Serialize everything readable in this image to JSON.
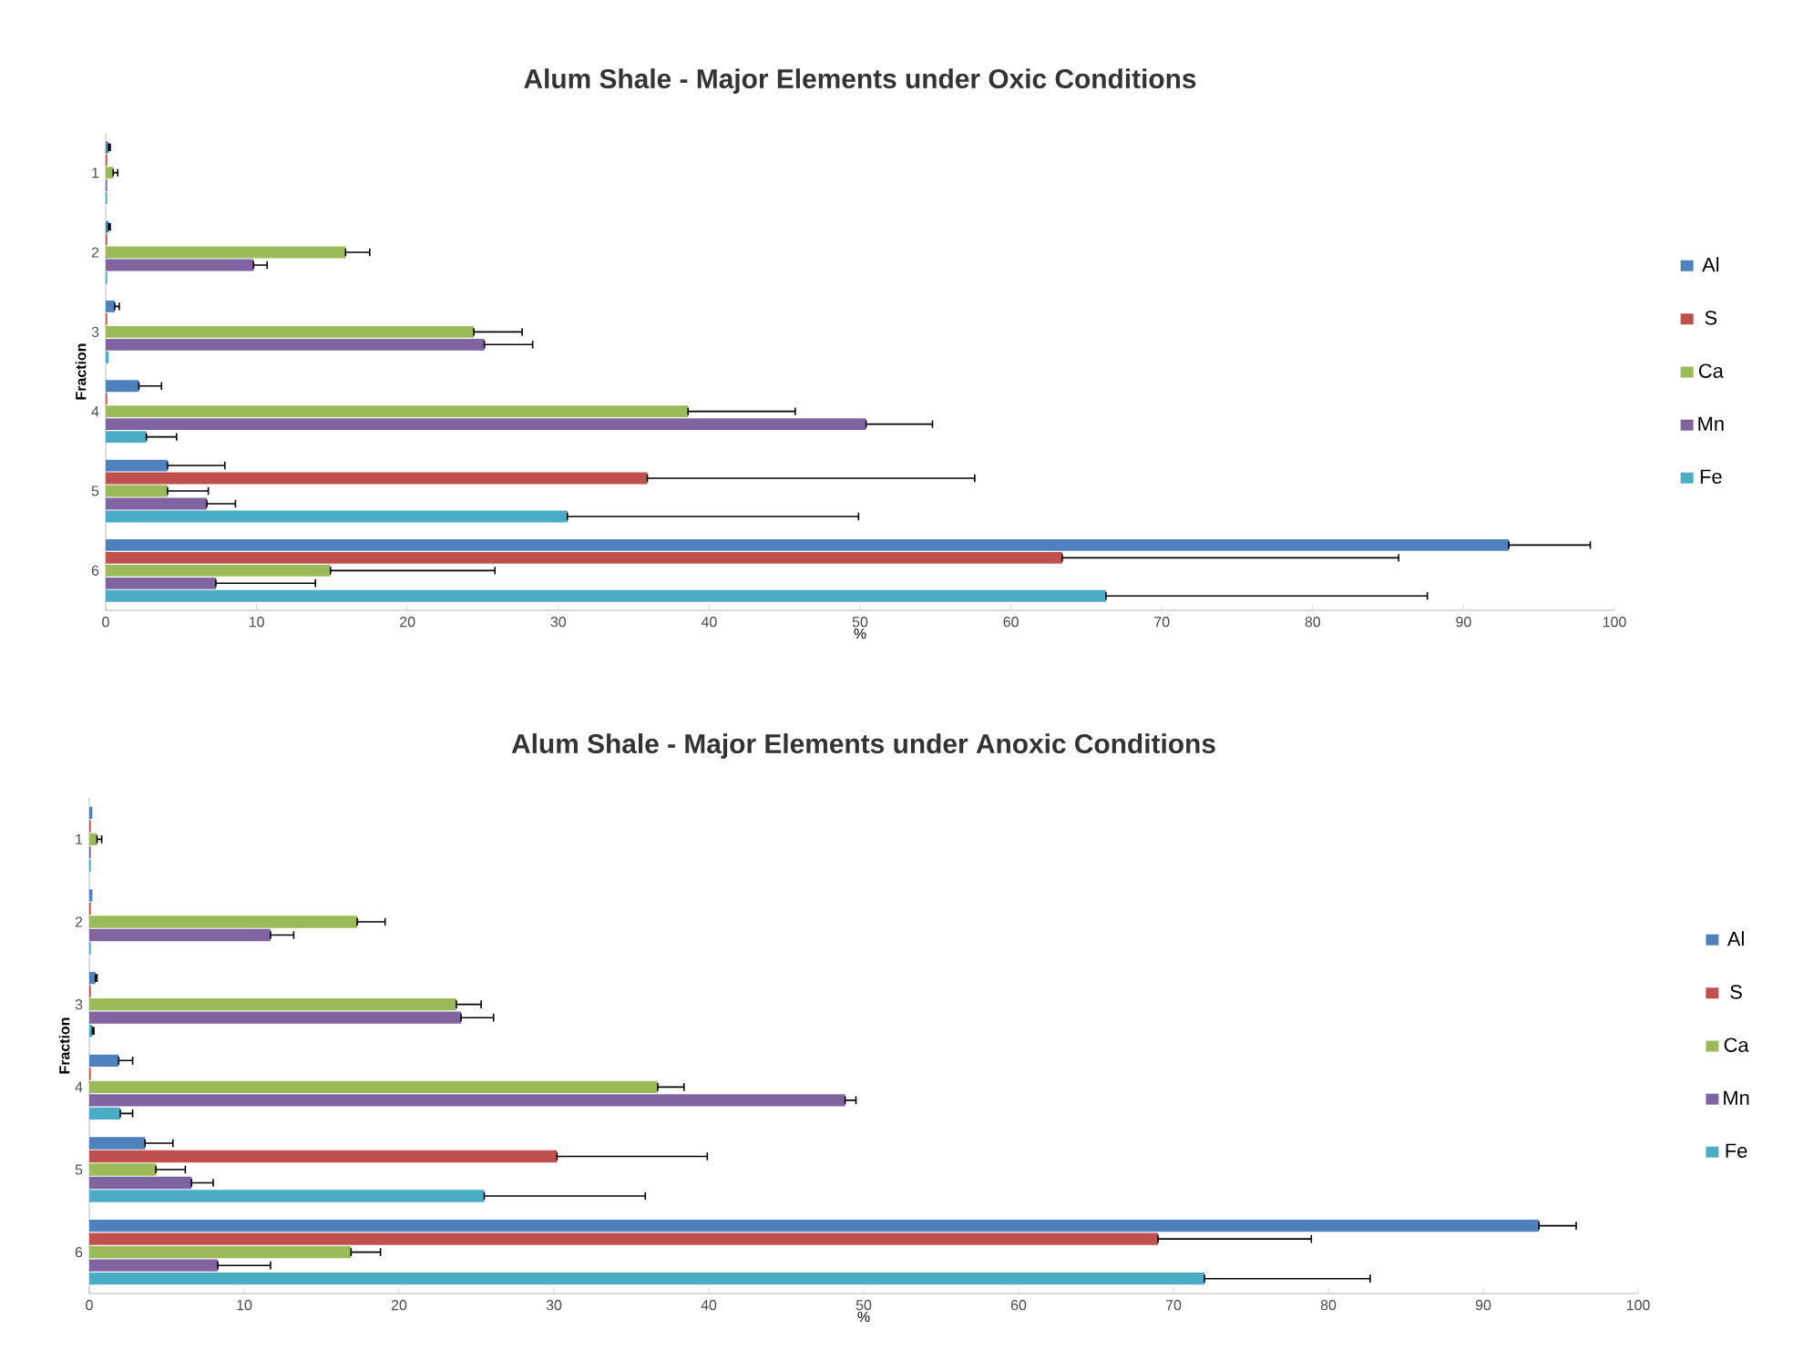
{
  "chart_data": [
    {
      "type": "bar",
      "orientation": "horizontal",
      "title": "Alum Shale - Major Elements under Oxic Conditions",
      "xlabel": "%",
      "ylabel": "Fraction",
      "categories": [
        "1",
        "2",
        "3",
        "4",
        "5",
        "6"
      ],
      "xlim": [
        0,
        100
      ],
      "xticks": [
        0,
        10,
        20,
        30,
        40,
        50,
        60,
        70,
        80,
        90,
        100
      ],
      "legend": "right",
      "series": [
        {
          "name": "Al",
          "color": "#4f81bd",
          "values": [
            0.2,
            0.2,
            0.6,
            2.2,
            4.1,
            93.0
          ],
          "errors": [
            [
              0.2,
              0.3
            ],
            [
              0.2,
              0.3
            ],
            [
              0.6,
              0.9
            ],
            [
              2.2,
              3.7
            ],
            [
              4.1,
              7.9
            ],
            [
              93.0,
              98.4
            ]
          ]
        },
        {
          "name": "S",
          "color": "#c0504d",
          "values": [
            0.1,
            0.1,
            0.1,
            0.1,
            35.9,
            63.4
          ],
          "errors": [
            null,
            null,
            null,
            null,
            [
              35.9,
              57.6
            ],
            [
              63.4,
              85.7
            ]
          ]
        },
        {
          "name": "Ca",
          "color": "#9bbb59",
          "values": [
            0.5,
            15.9,
            24.4,
            38.6,
            4.1,
            14.9
          ],
          "errors": [
            [
              0.5,
              0.8
            ],
            [
              15.9,
              17.5
            ],
            [
              24.4,
              27.6
            ],
            [
              38.6,
              45.7
            ],
            [
              4.1,
              6.8
            ],
            [
              14.9,
              25.8
            ]
          ]
        },
        {
          "name": "Mn",
          "color": "#8064a2",
          "values": [
            0.1,
            9.8,
            25.1,
            50.4,
            6.7,
            7.3
          ],
          "errors": [
            null,
            [
              9.8,
              10.7
            ],
            [
              25.1,
              28.3
            ],
            [
              50.4,
              54.8
            ],
            [
              6.7,
              8.6
            ],
            [
              7.3,
              13.9
            ]
          ]
        },
        {
          "name": "Fe",
          "color": "#4bacc6",
          "values": [
            0.1,
            0.1,
            0.2,
            2.7,
            30.6,
            66.3
          ],
          "errors": [
            null,
            null,
            null,
            [
              2.7,
              4.7
            ],
            [
              30.6,
              49.9
            ],
            [
              66.3,
              87.6
            ]
          ]
        }
      ]
    },
    {
      "type": "bar",
      "orientation": "horizontal",
      "title": "Alum Shale - Major Elements under Anoxic Conditions",
      "xlabel": "%",
      "ylabel": "Fraction",
      "categories": [
        "1",
        "2",
        "3",
        "4",
        "5",
        "6"
      ],
      "xlim": [
        0,
        100
      ],
      "xticks": [
        0,
        10,
        20,
        30,
        40,
        50,
        60,
        70,
        80,
        90,
        100
      ],
      "legend": "right",
      "series": [
        {
          "name": "Al",
          "color": "#4f81bd",
          "values": [
            0.2,
            0.2,
            0.4,
            1.9,
            3.6,
            93.6
          ],
          "errors": [
            null,
            null,
            [
              0.4,
              0.5
            ],
            [
              1.9,
              2.8
            ],
            [
              3.6,
              5.4
            ],
            [
              93.6,
              96.0
            ]
          ]
        },
        {
          "name": "S",
          "color": "#c0504d",
          "values": [
            0.1,
            0.1,
            0.1,
            0.1,
            30.2,
            69.0
          ],
          "errors": [
            null,
            null,
            null,
            null,
            [
              30.2,
              39.9
            ],
            [
              69.0,
              78.9
            ]
          ]
        },
        {
          "name": "Ca",
          "color": "#9bbb59",
          "values": [
            0.5,
            17.3,
            23.7,
            36.7,
            4.3,
            16.9
          ],
          "errors": [
            [
              0.5,
              0.8
            ],
            [
              17.3,
              19.1
            ],
            [
              23.7,
              25.3
            ],
            [
              36.7,
              38.4
            ],
            [
              4.3,
              6.2
            ],
            [
              16.9,
              18.8
            ]
          ]
        },
        {
          "name": "Mn",
          "color": "#8064a2",
          "values": [
            0.1,
            11.7,
            24.0,
            48.8,
            6.6,
            8.3
          ],
          "errors": [
            null,
            [
              11.7,
              13.2
            ],
            [
              24.0,
              26.1
            ],
            [
              48.8,
              49.5
            ],
            [
              6.6,
              8.0
            ],
            [
              8.3,
              11.7
            ]
          ]
        },
        {
          "name": "Fe",
          "color": "#4bacc6",
          "values": [
            0.1,
            0.1,
            0.2,
            2.0,
            25.5,
            72.0
          ],
          "errors": [
            null,
            null,
            [
              0.2,
              0.3
            ],
            [
              2.0,
              2.8
            ],
            [
              25.5,
              35.9
            ],
            [
              72.0,
              82.7
            ]
          ]
        }
      ]
    }
  ]
}
